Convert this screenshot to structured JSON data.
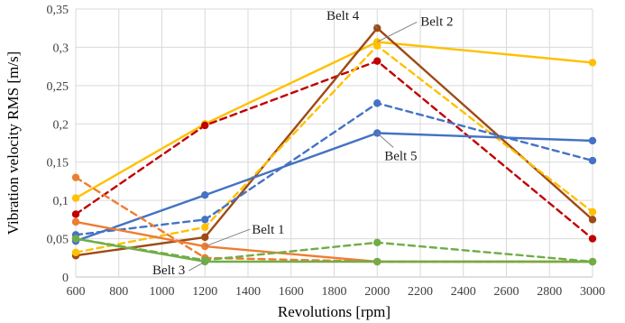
{
  "chart_data": {
    "type": "line",
    "title": "",
    "xlabel": "Revolutions [rpm]",
    "ylabel": "Vibration velocity RMS [m/s]",
    "xlim": [
      600,
      3000
    ],
    "ylim": [
      0,
      0.35
    ],
    "xticks": [
      "600",
      "800",
      "1000",
      "1200",
      "1400",
      "1600",
      "1800",
      "2000",
      "2200",
      "2400",
      "2600",
      "2800",
      "3000"
    ],
    "yticks": [
      "0",
      "0,05",
      "0,1",
      "0,15",
      "0,2",
      "0,25",
      "0,3",
      "0,35"
    ],
    "x": [
      600,
      1200,
      2000,
      3000
    ],
    "grid": true,
    "series": [
      {
        "color": "#FFC000",
        "dash": "solid",
        "values": [
          0.103,
          0.2,
          0.307,
          0.28
        ]
      },
      {
        "color": "#C00000",
        "dash": "dashed",
        "values": [
          0.082,
          0.198,
          0.282,
          0.05
        ]
      },
      {
        "color": "#9E4A15",
        "dash": "solid",
        "values": [
          0.028,
          0.052,
          0.325,
          0.075
        ]
      },
      {
        "color": "#FFC000",
        "dash": "dashed",
        "values": [
          0.032,
          0.065,
          0.302,
          0.085
        ]
      },
      {
        "color": "#4472C4",
        "dash": "solid",
        "values": [
          0.047,
          0.107,
          0.188,
          0.178
        ]
      },
      {
        "color": "#4472C4",
        "dash": "dashed",
        "values": [
          0.055,
          0.075,
          0.227,
          0.152
        ]
      },
      {
        "color": "#ED7D31",
        "dash": "solid",
        "values": [
          0.072,
          0.04,
          0.02,
          0.02
        ]
      },
      {
        "color": "#ED7D31",
        "dash": "dashed",
        "values": [
          0.13,
          0.025,
          0.02,
          0.02
        ]
      },
      {
        "color": "#70AD47",
        "dash": "solid",
        "values": [
          0.05,
          0.02,
          0.02,
          0.02
        ]
      },
      {
        "color": "#70AD47",
        "dash": "dashed",
        "values": [
          0.05,
          0.022,
          0.045,
          0.02
        ]
      }
    ],
    "annotations": [
      {
        "text": "Belt 4",
        "x": 2000,
        "y": 0.325
      },
      {
        "text": "Belt 2",
        "x": 2000,
        "y": 0.307
      },
      {
        "text": "Belt 5",
        "x": 2000,
        "y": 0.188
      },
      {
        "text": "Belt 1",
        "x": 1200,
        "y": 0.04
      },
      {
        "text": "Belt 3",
        "x": 1200,
        "y": 0.02
      }
    ]
  }
}
